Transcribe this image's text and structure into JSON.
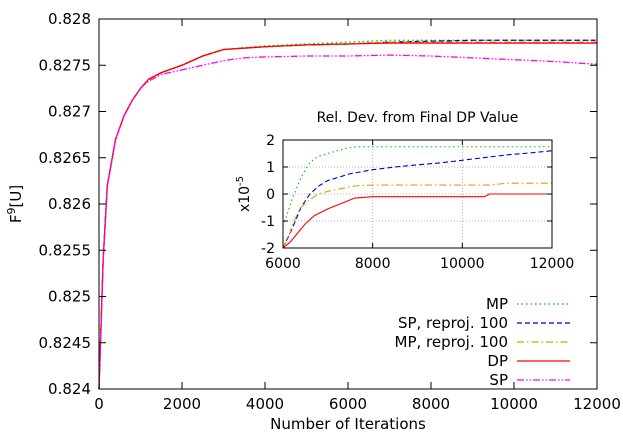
{
  "chart_data": [
    {
      "type": "line",
      "title": "",
      "xlabel": "Number of Iterations",
      "ylabel_base": "F",
      "ylabel_sup": "9",
      "ylabel_tail": "[U]",
      "xlim": [
        0,
        12000
      ],
      "ylim": [
        0.824,
        0.828
      ],
      "xticks": [
        0,
        2000,
        4000,
        6000,
        8000,
        10000,
        12000
      ],
      "yticks": [
        0.824,
        0.8245,
        0.825,
        0.8255,
        0.826,
        0.8265,
        0.827,
        0.8275,
        0.828
      ],
      "grid": false,
      "legend_position": "bottom-right",
      "series": [
        {
          "name": "MP",
          "color": "#00c000",
          "dash": "dotted",
          "x": [
            0,
            100,
            200,
            400,
            600,
            800,
            1000,
            1200,
            1500,
            2000,
            2500,
            3000,
            4000,
            5000,
            6000,
            7000,
            8000,
            9000,
            10000,
            11000,
            12000
          ],
          "y": [
            0.824,
            0.8254,
            0.8262,
            0.8267,
            0.82695,
            0.82712,
            0.82725,
            0.82735,
            0.82742,
            0.8275,
            0.8276,
            0.82767,
            0.82771,
            0.82773,
            0.82775,
            0.82777,
            0.82777,
            0.82777,
            0.82777,
            0.82777,
            0.82777
          ]
        },
        {
          "name": "SP, reproj. 100",
          "color": "#0000cc",
          "dash": "dashed",
          "x": [
            0,
            100,
            200,
            400,
            600,
            800,
            1000,
            1200,
            1500,
            2000,
            2500,
            3000,
            4000,
            5000,
            6000,
            7000,
            8000,
            9000,
            10000,
            11000,
            12000
          ],
          "y": [
            0.824,
            0.8254,
            0.8262,
            0.8267,
            0.82695,
            0.82712,
            0.82725,
            0.82735,
            0.82742,
            0.8275,
            0.8276,
            0.82767,
            0.8277,
            0.82772,
            0.82773,
            0.82775,
            0.82776,
            0.82777,
            0.82777,
            0.82777,
            0.82777
          ]
        },
        {
          "name": "MP, reproj. 100",
          "color": "#e0a000",
          "dash": "dashdot",
          "x": [
            0,
            100,
            200,
            400,
            600,
            800,
            1000,
            1200,
            1500,
            2000,
            2500,
            3000,
            4000,
            5000,
            6000,
            7000,
            8000,
            9000,
            10000,
            11000,
            12000
          ],
          "y": [
            0.824,
            0.8254,
            0.8262,
            0.8267,
            0.82695,
            0.82712,
            0.82725,
            0.82735,
            0.82742,
            0.8275,
            0.8276,
            0.82767,
            0.8277,
            0.82772,
            0.82773,
            0.82775,
            0.82775,
            0.82775,
            0.82775,
            0.82775,
            0.82775
          ]
        },
        {
          "name": "DP",
          "color": "#ff0000",
          "dash": "solid",
          "x": [
            0,
            100,
            200,
            400,
            600,
            800,
            1000,
            1200,
            1500,
            2000,
            2500,
            3000,
            4000,
            5000,
            6000,
            7000,
            8000,
            9000,
            10000,
            11000,
            12000
          ],
          "y": [
            0.824,
            0.8254,
            0.8262,
            0.8267,
            0.82695,
            0.82712,
            0.82725,
            0.82735,
            0.82742,
            0.8275,
            0.8276,
            0.82767,
            0.8277,
            0.82772,
            0.82773,
            0.82774,
            0.82774,
            0.82774,
            0.82774,
            0.82774,
            0.82774
          ]
        },
        {
          "name": "SP",
          "color": "#ff00ff",
          "dash": "dashdotdot",
          "x": [
            0,
            100,
            200,
            400,
            600,
            800,
            1000,
            1200,
            1500,
            2000,
            2500,
            3000,
            3500,
            4000,
            5000,
            6000,
            7000,
            8000,
            9000,
            10000,
            11000,
            12000
          ],
          "y": [
            0.824,
            0.8254,
            0.8262,
            0.8267,
            0.82695,
            0.82712,
            0.82725,
            0.82733,
            0.8274,
            0.82745,
            0.8275,
            0.82755,
            0.82758,
            0.82759,
            0.8276,
            0.8276,
            0.82761,
            0.8276,
            0.82758,
            0.82756,
            0.82754,
            0.82751
          ]
        }
      ]
    },
    {
      "type": "line",
      "title": "Rel. Dev. from Final DP Value",
      "ylabel_base": "x10",
      "ylabel_sup": "-5",
      "xlim": [
        6000,
        12000
      ],
      "ylim": [
        -2,
        2
      ],
      "xticks": [
        6000,
        8000,
        10000,
        12000
      ],
      "yticks": [
        -2,
        -1,
        0,
        1,
        2
      ],
      "grid": true,
      "series": [
        {
          "name": "MP",
          "color": "#00c000",
          "dash": "dotted",
          "x": [
            6000,
            6100,
            6200,
            6300,
            6400,
            6500,
            6600,
            6700,
            6800,
            7000,
            7200,
            7500,
            7700,
            8000,
            9000,
            10000,
            11000,
            12000
          ],
          "y": [
            -1.2,
            -0.7,
            -0.2,
            0.2,
            0.6,
            0.9,
            1.15,
            1.3,
            1.4,
            1.5,
            1.6,
            1.72,
            1.75,
            1.75,
            1.75,
            1.75,
            1.75,
            1.75
          ]
        },
        {
          "name": "SP, reproj. 100",
          "color": "#0000cc",
          "dash": "dashed",
          "x": [
            6000,
            6200,
            6400,
            6600,
            6800,
            7000,
            7500,
            8000,
            8500,
            9000,
            9500,
            10000,
            10500,
            11000,
            11500,
            12000
          ],
          "y": [
            -2.0,
            -1.3,
            -0.5,
            0.0,
            0.3,
            0.5,
            0.75,
            0.9,
            1.0,
            1.08,
            1.15,
            1.25,
            1.35,
            1.45,
            1.52,
            1.6
          ]
        },
        {
          "name": "MP, reproj. 100",
          "color": "#e0a000",
          "dash": "dashdot",
          "x": [
            6000,
            6100,
            6200,
            6300,
            6400,
            6600,
            6800,
            7000,
            7300,
            7600,
            8000,
            9000,
            10000,
            10600,
            11000,
            12000
          ],
          "y": [
            -2.0,
            -1.7,
            -1.2,
            -0.8,
            -0.5,
            -0.2,
            0.0,
            0.1,
            0.2,
            0.3,
            0.33,
            0.33,
            0.33,
            0.33,
            0.4,
            0.4
          ]
        },
        {
          "name": "DP",
          "color": "#ff0000",
          "dash": "solid",
          "x": [
            6000,
            6150,
            6300,
            6500,
            6700,
            7000,
            7300,
            7600,
            8000,
            9000,
            10000,
            10500,
            10600,
            11000,
            12000
          ],
          "y": [
            -2.0,
            -1.8,
            -1.5,
            -1.1,
            -0.8,
            -0.55,
            -0.35,
            -0.15,
            -0.1,
            -0.1,
            -0.1,
            -0.1,
            0.0,
            0.0,
            0.0
          ]
        }
      ]
    }
  ]
}
